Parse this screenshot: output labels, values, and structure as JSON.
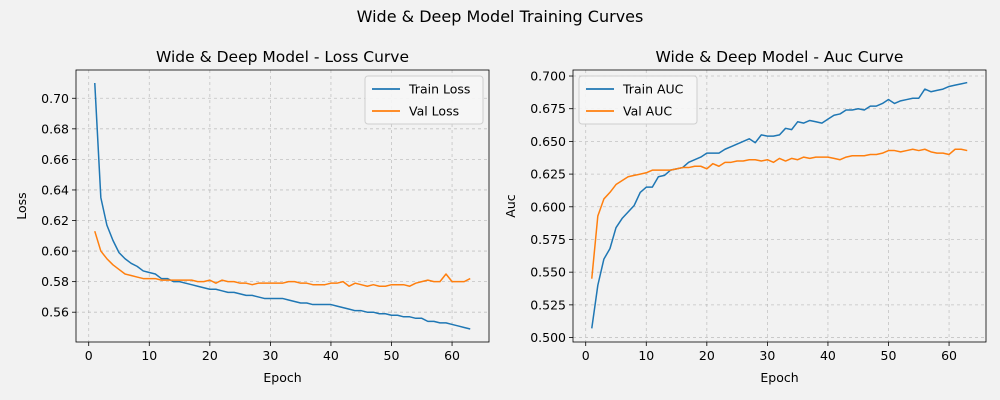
{
  "figure": {
    "suptitle": "Wide & Deep Model Training Curves",
    "background": "#f2f2f2"
  },
  "chart_data": [
    {
      "type": "line",
      "title": "Wide & Deep Model - Loss Curve",
      "xlabel": "Epoch",
      "ylabel": "Loss",
      "xlim": [
        -2.1,
        66.1
      ],
      "ylim": [
        0.5405,
        0.7185
      ],
      "xticks": [
        0,
        10,
        20,
        30,
        40,
        50,
        60
      ],
      "yticks": [
        0.56,
        0.58,
        0.6,
        0.62,
        0.64,
        0.66,
        0.68,
        0.7
      ],
      "yticks_labels": [
        "0.56",
        "0.58",
        "0.60",
        "0.62",
        "0.64",
        "0.66",
        "0.68",
        "0.70"
      ],
      "grid": true,
      "legend": "upper right",
      "series": [
        {
          "name": "Train Loss",
          "color": "#1f77b4",
          "x": [
            1,
            2,
            3,
            4,
            5,
            6,
            7,
            8,
            9,
            10,
            11,
            12,
            13,
            14,
            15,
            16,
            17,
            18,
            19,
            20,
            21,
            22,
            23,
            24,
            25,
            26,
            27,
            28,
            29,
            30,
            31,
            32,
            33,
            34,
            35,
            36,
            37,
            38,
            39,
            40,
            41,
            42,
            43,
            44,
            45,
            46,
            47,
            48,
            49,
            50,
            51,
            52,
            53,
            54,
            55,
            56,
            57,
            58,
            59,
            60,
            61,
            62,
            63
          ],
          "values": [
            0.71,
            0.635,
            0.617,
            0.607,
            0.599,
            0.595,
            0.592,
            0.59,
            0.587,
            0.586,
            0.585,
            0.582,
            0.582,
            0.58,
            0.58,
            0.579,
            0.578,
            0.577,
            0.576,
            0.575,
            0.575,
            0.574,
            0.573,
            0.573,
            0.572,
            0.571,
            0.571,
            0.57,
            0.569,
            0.569,
            0.569,
            0.569,
            0.568,
            0.567,
            0.566,
            0.566,
            0.565,
            0.565,
            0.565,
            0.565,
            0.564,
            0.563,
            0.562,
            0.561,
            0.561,
            0.56,
            0.56,
            0.559,
            0.559,
            0.558,
            0.558,
            0.557,
            0.557,
            0.556,
            0.556,
            0.554,
            0.554,
            0.553,
            0.553,
            0.552,
            0.551,
            0.55,
            0.549
          ]
        },
        {
          "name": "Val Loss",
          "color": "#ff7f0e",
          "x": [
            1,
            2,
            3,
            4,
            5,
            6,
            7,
            8,
            9,
            10,
            11,
            12,
            13,
            14,
            15,
            16,
            17,
            18,
            19,
            20,
            21,
            22,
            23,
            24,
            25,
            26,
            27,
            28,
            29,
            30,
            31,
            32,
            33,
            34,
            35,
            36,
            37,
            38,
            39,
            40,
            41,
            42,
            43,
            44,
            45,
            46,
            47,
            48,
            49,
            50,
            51,
            52,
            53,
            54,
            55,
            56,
            57,
            58,
            59,
            60,
            61,
            62,
            63
          ],
          "values": [
            0.613,
            0.6,
            0.595,
            0.591,
            0.588,
            0.585,
            0.584,
            0.583,
            0.582,
            0.582,
            0.582,
            0.581,
            0.581,
            0.581,
            0.581,
            0.581,
            0.581,
            0.58,
            0.58,
            0.581,
            0.579,
            0.581,
            0.58,
            0.58,
            0.579,
            0.579,
            0.578,
            0.579,
            0.579,
            0.579,
            0.579,
            0.579,
            0.58,
            0.58,
            0.579,
            0.579,
            0.578,
            0.578,
            0.578,
            0.579,
            0.579,
            0.58,
            0.577,
            0.579,
            0.578,
            0.577,
            0.578,
            0.577,
            0.577,
            0.578,
            0.578,
            0.578,
            0.577,
            0.579,
            0.58,
            0.581,
            0.58,
            0.58,
            0.585,
            0.58,
            0.58,
            0.58,
            0.582
          ]
        }
      ]
    },
    {
      "type": "line",
      "title": "Wide & Deep Model - Auc Curve",
      "xlabel": "Epoch",
      "ylabel": "Auc",
      "xlim": [
        -2.1,
        66.1
      ],
      "ylim": [
        0.4966,
        0.7046
      ],
      "xticks": [
        0,
        10,
        20,
        30,
        40,
        50,
        60
      ],
      "yticks": [
        0.5,
        0.525,
        0.55,
        0.575,
        0.6,
        0.625,
        0.65,
        0.675,
        0.7
      ],
      "yticks_labels": [
        "0.500",
        "0.525",
        "0.550",
        "0.575",
        "0.600",
        "0.625",
        "0.650",
        "0.675",
        "0.700"
      ],
      "grid": true,
      "legend": "upper left",
      "series": [
        {
          "name": "Train AUC",
          "color": "#1f77b4",
          "x": [
            1,
            2,
            3,
            4,
            5,
            6,
            7,
            8,
            9,
            10,
            11,
            12,
            13,
            14,
            15,
            16,
            17,
            18,
            19,
            20,
            21,
            22,
            23,
            24,
            25,
            26,
            27,
            28,
            29,
            30,
            31,
            32,
            33,
            34,
            35,
            36,
            37,
            38,
            39,
            40,
            41,
            42,
            43,
            44,
            45,
            46,
            47,
            48,
            49,
            50,
            51,
            52,
            53,
            54,
            55,
            56,
            57,
            58,
            59,
            60,
            61,
            62,
            63
          ],
          "values": [
            0.507,
            0.54,
            0.56,
            0.568,
            0.584,
            0.591,
            0.596,
            0.601,
            0.611,
            0.615,
            0.615,
            0.623,
            0.624,
            0.628,
            0.629,
            0.63,
            0.634,
            0.636,
            0.638,
            0.641,
            0.641,
            0.641,
            0.644,
            0.646,
            0.648,
            0.65,
            0.652,
            0.649,
            0.655,
            0.654,
            0.654,
            0.655,
            0.66,
            0.659,
            0.665,
            0.664,
            0.666,
            0.665,
            0.664,
            0.667,
            0.67,
            0.671,
            0.674,
            0.674,
            0.675,
            0.674,
            0.677,
            0.677,
            0.679,
            0.682,
            0.679,
            0.681,
            0.682,
            0.683,
            0.683,
            0.69,
            0.688,
            0.689,
            0.69,
            0.692,
            0.693,
            0.694,
            0.695
          ]
        },
        {
          "name": "Val AUC",
          "color": "#ff7f0e",
          "x": [
            1,
            2,
            3,
            4,
            5,
            6,
            7,
            8,
            9,
            10,
            11,
            12,
            13,
            14,
            15,
            16,
            17,
            18,
            19,
            20,
            21,
            22,
            23,
            24,
            25,
            26,
            27,
            28,
            29,
            30,
            31,
            32,
            33,
            34,
            35,
            36,
            37,
            38,
            39,
            40,
            41,
            42,
            43,
            44,
            45,
            46,
            47,
            48,
            49,
            50,
            51,
            52,
            53,
            54,
            55,
            56,
            57,
            58,
            59,
            60,
            61,
            62,
            63
          ],
          "values": [
            0.545,
            0.593,
            0.606,
            0.611,
            0.617,
            0.62,
            0.623,
            0.624,
            0.625,
            0.626,
            0.628,
            0.628,
            0.628,
            0.628,
            0.629,
            0.63,
            0.63,
            0.631,
            0.631,
            0.629,
            0.633,
            0.631,
            0.634,
            0.634,
            0.635,
            0.635,
            0.636,
            0.636,
            0.635,
            0.636,
            0.634,
            0.637,
            0.635,
            0.637,
            0.636,
            0.638,
            0.637,
            0.638,
            0.638,
            0.638,
            0.637,
            0.636,
            0.638,
            0.639,
            0.639,
            0.639,
            0.64,
            0.64,
            0.641,
            0.643,
            0.643,
            0.642,
            0.643,
            0.644,
            0.643,
            0.644,
            0.642,
            0.641,
            0.641,
            0.64,
            0.644,
            0.644,
            0.643
          ]
        }
      ]
    }
  ]
}
